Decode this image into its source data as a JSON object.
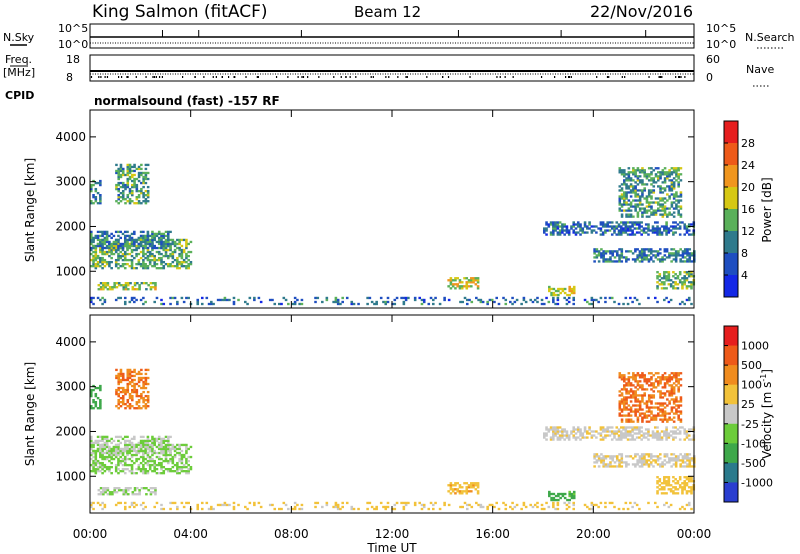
{
  "header": {
    "station": "King Salmon (fitACF)",
    "beam": "Beam 12",
    "date": "22/Nov/2016"
  },
  "strips": {
    "nsky_label": "N.Sky",
    "nsky_ticks": [
      "10^5",
      "10^0"
    ],
    "nsearch_label": "N.Search",
    "nsearch_ticks": [
      "10^5",
      "10^0"
    ],
    "freq_label": "Freq.",
    "freq_unit": "[MHz]",
    "freq_ticks": [
      "18",
      "8"
    ],
    "nave_label": "Nave",
    "nave_ticks": [
      "60",
      "0"
    ],
    "cpid_label": "CPID",
    "cpid_text": "normalsound (fast) -157 RF"
  },
  "axes": {
    "ylabel": "Slant Range [km]",
    "xlabel": "Time UT",
    "y_ticks": [
      "1000",
      "2000",
      "3000",
      "4000"
    ],
    "x_ticks": [
      "00:00",
      "04:00",
      "08:00",
      "12:00",
      "16:00",
      "20:00",
      "00:00"
    ]
  },
  "colorbars": {
    "power": {
      "label": "Power [dB]",
      "ticks": [
        "4",
        "8",
        "12",
        "16",
        "20",
        "24",
        "28"
      ],
      "colors": [
        "#1428e6",
        "#1e4ec0",
        "#2f7a8c",
        "#5ab05a",
        "#d6c814",
        "#f0961e",
        "#ee5a19",
        "#e61e1e"
      ]
    },
    "velocity": {
      "label": "Velocity [m s",
      "label_sup": "-1",
      "label_end": "]",
      "ticks": [
        "1000",
        "500",
        "100",
        "25",
        "-25",
        "-100",
        "-500",
        "-1000"
      ],
      "colors": [
        "#2a3ed0",
        "#2a7a8c",
        "#3ea84a",
        "#6ccc3a",
        "#c8c8c8",
        "#f2c23a",
        "#f08c1e",
        "#ee5a19",
        "#e61e1e"
      ]
    }
  },
  "chart_data": {
    "type": "heatmap",
    "x_range_hours": [
      0,
      24
    ],
    "y_range_km": [
      180,
      4600
    ],
    "range_gate_km": 45,
    "echo_regions": [
      {
        "name": "early-band",
        "t0": 0.0,
        "t1": 4.0,
        "r0": 1050,
        "r1": 1700,
        "power": 13,
        "velocity": 40
      },
      {
        "name": "early-top",
        "t0": 0.0,
        "t1": 3.2,
        "r0": 1500,
        "r1": 1900,
        "power": 10,
        "velocity": 20
      },
      {
        "name": "early-high",
        "t0": 1.0,
        "t1": 2.3,
        "r0": 2500,
        "r1": 3400,
        "power": 12,
        "velocity": -450
      },
      {
        "name": "early-left",
        "t0": 0.0,
        "t1": 0.4,
        "r0": 2500,
        "r1": 3000,
        "power": 10,
        "velocity": 200
      },
      {
        "name": "early-low",
        "t0": 0.3,
        "t1": 2.6,
        "r0": 580,
        "r1": 750,
        "power": 16,
        "velocity": 20
      },
      {
        "name": "near-range",
        "t0": 0.0,
        "t1": 24.0,
        "r0": 250,
        "r1": 400,
        "power": 8,
        "velocity": -40
      },
      {
        "name": "mid-14h",
        "t0": 14.2,
        "t1": 15.4,
        "r0": 600,
        "r1": 850,
        "power": 18,
        "velocity": -80
      },
      {
        "name": "mid-18h",
        "t0": 18.2,
        "t1": 19.2,
        "r0": 450,
        "r1": 650,
        "power": 17,
        "velocity": 150
      },
      {
        "name": "late-band",
        "t0": 18.0,
        "t1": 24.0,
        "r0": 1800,
        "r1": 2100,
        "power": 8,
        "velocity": -10
      },
      {
        "name": "late-mid",
        "t0": 20.0,
        "t1": 24.0,
        "r0": 1200,
        "r1": 1500,
        "power": 9,
        "velocity": -15
      },
      {
        "name": "late-high",
        "t0": 21.0,
        "t1": 23.5,
        "r0": 2200,
        "r1": 3300,
        "power": 12,
        "velocity": -500
      },
      {
        "name": "late-low",
        "t0": 22.5,
        "t1": 24.0,
        "r0": 600,
        "r1": 1000,
        "power": 14,
        "velocity": -60
      }
    ]
  }
}
